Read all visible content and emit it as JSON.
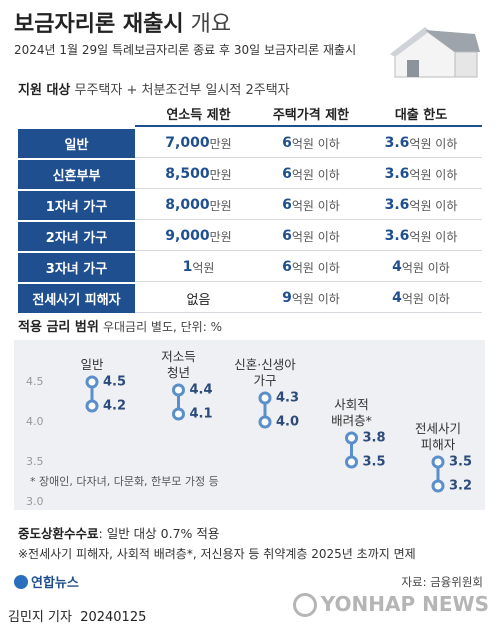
{
  "header": {
    "title": "보금자리론 재출시",
    "title_suffix": "개요",
    "subtitle": "2024년 1월 29일 특례보금자리론 종료 후 30일 보금자리론 재출시"
  },
  "support": {
    "label": "지원 대상",
    "text": "무주택자 + 처분조건부 일시적 2주택자"
  },
  "table": {
    "headers": [
      "연소득 제한",
      "주택가격 제한",
      "대출 한도"
    ],
    "rows": [
      {
        "label": "일반",
        "cells": [
          {
            "num": "7,000",
            "unit": "만원"
          },
          {
            "num": "6",
            "unit": "억원 이하"
          },
          {
            "num": "3.6",
            "unit": "억원 이하"
          }
        ]
      },
      {
        "label": "신혼부부",
        "cells": [
          {
            "num": "8,500",
            "unit": "만원"
          },
          {
            "num": "6",
            "unit": "억원 이하"
          },
          {
            "num": "3.6",
            "unit": "억원 이하"
          }
        ]
      },
      {
        "label": "1자녀 가구",
        "cells": [
          {
            "num": "8,000",
            "unit": "만원"
          },
          {
            "num": "6",
            "unit": "억원 이하"
          },
          {
            "num": "3.6",
            "unit": "억원 이하"
          }
        ]
      },
      {
        "label": "2자녀 가구",
        "cells": [
          {
            "num": "9,000",
            "unit": "만원"
          },
          {
            "num": "6",
            "unit": "억원 이하"
          },
          {
            "num": "3.6",
            "unit": "억원 이하"
          }
        ]
      },
      {
        "label": "3자녀 가구",
        "cells": [
          {
            "num": "1",
            "unit": "억원"
          },
          {
            "num": "6",
            "unit": "억원 이하"
          },
          {
            "num": "4",
            "unit": "억원 이하"
          }
        ]
      },
      {
        "label": "전세사기 피해자",
        "cells": [
          {
            "unit": "없음"
          },
          {
            "num": "9",
            "unit": "억원 이하"
          },
          {
            "num": "4",
            "unit": "억원 이하"
          }
        ]
      }
    ]
  },
  "chart_data": {
    "type": "dumbbell",
    "title": "적용 금리 범위",
    "subtitle": "우대금리 별도, 단위: %",
    "categories": [
      "일반",
      "저소득\n청년",
      "신혼·신생아\n가구",
      "사회적\n배려층*",
      "전세사기\n피해자"
    ],
    "series": [
      {
        "color": "#5b8fc9",
        "values": [
          4.5,
          4.4,
          4.3,
          3.8,
          3.5
        ],
        "value_labels": [
          "4.5",
          "4.4",
          "4.3",
          "3.8",
          "3.5"
        ]
      },
      {
        "color": "#5b8fc9",
        "values": [
          4.2,
          4.1,
          4,
          3.5,
          3.2
        ],
        "value_labels": [
          "4.2",
          "4.1",
          "4.0",
          "3.5",
          "3.2"
        ]
      }
    ],
    "ylim": [
      3,
      4.5
    ],
    "yticks": [
      {
        "value": 3,
        "label": "3.0"
      },
      3.5,
      {
        "value": 4,
        "label": "4.0"
      },
      4.5
    ],
    "note": "* 장애인, 다자녀, 다문화, 한부모 가정 등"
  },
  "footer": {
    "fee_label": "중도상환수수료",
    "fee_text": ": 일반 대상 0.7% 적용",
    "exemption": "※전세사기 피해자, 사회적 배려층*, 저신용자 등 취약계층 2025년 초까지 면제",
    "source": "자료: 금융위원회",
    "logo": "연합뉴스",
    "byline": "김민지 기자  20240125",
    "watermark": "YONHAP NEWS"
  }
}
